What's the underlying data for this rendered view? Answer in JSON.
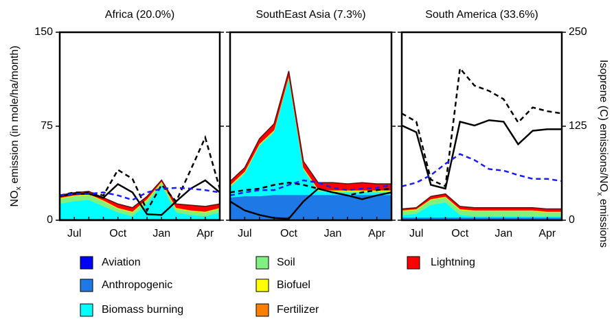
{
  "chart_data": [
    {
      "type": "area",
      "title": "Africa (20.0%)",
      "categories": [
        null,
        "Jul",
        null,
        null,
        "Oct",
        null,
        null,
        "Jan",
        null,
        null,
        "Apr",
        null
      ],
      "ylim": [
        0,
        150
      ],
      "yticks": [
        0,
        75,
        150
      ],
      "y2lim": [
        0,
        250
      ],
      "y2ticks": [
        0,
        125,
        250
      ],
      "y_label": [
        "NO",
        "x",
        " emission (in mole/ha/month)"
      ],
      "series": [
        {
          "name": "Aviation",
          "color": "#0000ff",
          "values": [
            0.2,
            0.2,
            0.2,
            0.2,
            0.2,
            0.2,
            0.2,
            0.2,
            0.2,
            0.2,
            0.2,
            0.2
          ]
        },
        {
          "name": "Anthropogenic",
          "color": "#1e78e6",
          "values": [
            1,
            1,
            1,
            1,
            1,
            1,
            1,
            1,
            1,
            1,
            1,
            1
          ]
        },
        {
          "name": "Biomass burning",
          "color": "#00ffff",
          "values": [
            12,
            14,
            15,
            10,
            5,
            2,
            12,
            27,
            5,
            3,
            2,
            5
          ]
        },
        {
          "name": "Soil",
          "color": "#80f080",
          "values": [
            4,
            4,
            4,
            4,
            3,
            3,
            3,
            2,
            3,
            3,
            3,
            3
          ]
        },
        {
          "name": "Biofuel",
          "color": "#ffff00",
          "values": [
            0.5,
            0.5,
            0.5,
            0.5,
            0.5,
            0.5,
            0.5,
            0.5,
            0.5,
            0.5,
            0.5,
            0.5
          ]
        },
        {
          "name": "Fertilizer",
          "color": "#ff8000",
          "values": [
            0.3,
            0.3,
            0.3,
            0.3,
            0.3,
            0.3,
            0.3,
            0.3,
            0.3,
            0.3,
            0.3,
            0.3
          ]
        },
        {
          "name": "Lightning",
          "color": "#ff0000",
          "values": [
            2,
            2,
            2,
            2,
            3,
            3,
            2,
            1,
            3,
            4,
            4,
            3
          ]
        }
      ],
      "lines": [
        {
          "color": "#000000",
          "dash": false,
          "axis": "y2",
          "values": [
            32,
            35,
            35,
            30,
            48,
            37,
            8,
            7,
            25,
            42,
            53,
            37
          ]
        },
        {
          "color": "#000000",
          "dash": true,
          "axis": "y2",
          "values": [
            33,
            37,
            37,
            33,
            67,
            55,
            13,
            47,
            25,
            67,
            110,
            42
          ]
        },
        {
          "color": "#1a1aff",
          "dash": true,
          "axis": "y2",
          "values": [
            33,
            35,
            35,
            37,
            33,
            27,
            37,
            42,
            43,
            42,
            40,
            37
          ]
        }
      ]
    },
    {
      "type": "area",
      "title": "SouthEast Asia (7.3%)",
      "categories": [
        null,
        "Jul",
        null,
        null,
        "Oct",
        null,
        null,
        "Jan",
        null,
        null,
        "Apr",
        null
      ],
      "ylim": [
        0,
        150
      ],
      "yticks": [
        0,
        75,
        150
      ],
      "y2lim": [
        0,
        250
      ],
      "y2ticks": [
        0,
        125,
        250
      ],
      "series": [
        {
          "color": "#0000ff",
          "values": [
            0.2,
            0.2,
            0.2,
            0.2,
            0.2,
            0.2,
            0.2,
            0.2,
            0.2,
            0.2,
            0.2,
            0.2
          ]
        },
        {
          "color": "#1e78e6",
          "values": [
            18,
            19,
            19,
            20,
            20,
            20,
            20,
            20,
            20,
            20,
            20,
            20
          ]
        },
        {
          "color": "#00ffff",
          "values": [
            8,
            18,
            40,
            50,
            93,
            20,
            3,
            2,
            2,
            2,
            2,
            2
          ]
        },
        {
          "color": "#80f080",
          "values": [
            1,
            1,
            1,
            1,
            1,
            1,
            1,
            1,
            1,
            1,
            1,
            1
          ]
        },
        {
          "color": "#ffff00",
          "values": [
            0.5,
            0.5,
            0.5,
            0.5,
            0.5,
            0.5,
            0.5,
            0.5,
            0.5,
            0.5,
            0.5,
            0.5
          ]
        },
        {
          "color": "#ff8000",
          "values": [
            0.3,
            0.3,
            0.3,
            0.3,
            0.3,
            0.3,
            0.3,
            0.3,
            0.3,
            0.3,
            0.3,
            0.3
          ]
        },
        {
          "color": "#ff0000",
          "values": [
            3,
            3,
            4,
            5,
            4,
            5,
            5,
            6,
            5,
            6,
            5,
            5
          ]
        }
      ],
      "lines": [
        {
          "color": "#000000",
          "dash": false,
          "axis": "y2",
          "values": [
            25,
            13,
            7,
            3,
            2,
            25,
            42,
            37,
            33,
            28,
            33,
            37
          ]
        },
        {
          "color": "#000000",
          "dash": true,
          "axis": "y2",
          "values": [
            37,
            40,
            42,
            47,
            50,
            47,
            42,
            37,
            33,
            37,
            40,
            42
          ]
        },
        {
          "color": "#1a1aff",
          "dash": true,
          "axis": "y2",
          "values": [
            33,
            37,
            40,
            40,
            47,
            53,
            50,
            43,
            40,
            42,
            43,
            47
          ]
        }
      ]
    },
    {
      "type": "area",
      "title": "South America (33.6%)",
      "categories": [
        null,
        "Jul",
        null,
        null,
        "Oct",
        null,
        null,
        "Jan",
        null,
        null,
        "Apr",
        null
      ],
      "ylim": [
        0,
        150
      ],
      "yticks": [
        0,
        75,
        150
      ],
      "y2lim": [
        0,
        250
      ],
      "y2ticks": [
        0,
        125,
        250
      ],
      "y2_label": [
        "Isoprene (C) emissions/NO",
        "x",
        " emissions"
      ],
      "series": [
        {
          "color": "#0000ff",
          "values": [
            0.2,
            0.2,
            0.2,
            0.2,
            0.2,
            0.2,
            0.2,
            0.2,
            0.2,
            0.2,
            0.2,
            0.2
          ]
        },
        {
          "color": "#1e78e6",
          "values": [
            2,
            2,
            2,
            2,
            2,
            2,
            2,
            2,
            2,
            2,
            2,
            2
          ]
        },
        {
          "color": "#00ffff",
          "values": [
            2,
            3,
            10,
            12,
            2,
            1,
            1,
            1,
            1,
            1,
            1,
            1
          ]
        },
        {
          "color": "#80f080",
          "values": [
            3,
            3,
            4,
            4,
            4,
            4,
            4,
            4,
            4,
            4,
            3,
            3
          ]
        },
        {
          "color": "#ffff00",
          "values": [
            0.5,
            0.5,
            0.5,
            0.5,
            0.5,
            0.5,
            0.5,
            0.5,
            0.5,
            0.5,
            0.5,
            0.5
          ]
        },
        {
          "color": "#ff8000",
          "values": [
            0.3,
            0.3,
            0.3,
            0.3,
            0.3,
            0.3,
            0.3,
            0.3,
            0.3,
            0.3,
            0.3,
            0.3
          ]
        },
        {
          "color": "#ff0000",
          "values": [
            1,
            1,
            2,
            2,
            2,
            2,
            2,
            2,
            2,
            2,
            2,
            2
          ]
        }
      ],
      "lines": [
        {
          "color": "#000000",
          "dash": false,
          "axis": "y2",
          "values": [
            126,
            117,
            47,
            42,
            131,
            126,
            133,
            131,
            101,
            119,
            121,
            121
          ]
        },
        {
          "color": "#000000",
          "dash": true,
          "axis": "y2",
          "values": [
            142,
            131,
            54,
            45,
            202,
            179,
            172,
            161,
            130,
            150,
            145,
            142
          ]
        },
        {
          "color": "#1a1aff",
          "dash": true,
          "axis": "y2",
          "values": [
            45,
            50,
            60,
            75,
            88,
            80,
            68,
            66,
            60,
            55,
            55,
            52
          ]
        }
      ]
    }
  ]
}
